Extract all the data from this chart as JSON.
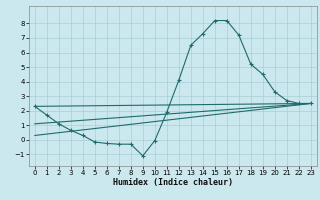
{
  "xlabel": "Humidex (Indice chaleur)",
  "xlim": [
    -0.5,
    23.5
  ],
  "ylim": [
    -1.8,
    9.2
  ],
  "yticks": [
    -1,
    0,
    1,
    2,
    3,
    4,
    5,
    6,
    7,
    8
  ],
  "xticks": [
    0,
    1,
    2,
    3,
    4,
    5,
    6,
    7,
    8,
    9,
    10,
    11,
    12,
    13,
    14,
    15,
    16,
    17,
    18,
    19,
    20,
    21,
    22,
    23
  ],
  "bg_color": "#cce8ef",
  "grid_color": "#aacdd8",
  "line_color": "#1e6b6b",
  "line1_x": [
    0,
    1,
    2,
    3,
    4,
    5,
    6,
    7,
    8,
    9,
    10,
    11,
    12,
    13,
    14,
    15,
    16,
    17,
    18,
    19,
    20,
    21,
    22,
    23
  ],
  "line1_y": [
    2.3,
    1.7,
    1.1,
    0.65,
    0.3,
    -0.15,
    -0.25,
    -0.3,
    -0.3,
    -1.1,
    -0.05,
    1.9,
    4.1,
    6.5,
    7.3,
    8.2,
    8.2,
    7.2,
    5.2,
    4.5,
    3.3,
    2.7,
    2.5,
    2.5
  ],
  "line2_x": [
    0,
    23
  ],
  "line2_y": [
    2.3,
    2.5
  ],
  "line3_x": [
    0,
    23
  ],
  "line3_y": [
    2.3,
    2.5
  ],
  "line4_x": [
    0,
    23
  ],
  "line4_y": [
    2.3,
    2.5
  ],
  "straight_lines": [
    {
      "x": [
        0,
        23
      ],
      "y": [
        2.3,
        2.5
      ]
    },
    {
      "x": [
        0,
        23
      ],
      "y": [
        1.1,
        2.5
      ]
    },
    {
      "x": [
        0,
        23
      ],
      "y": [
        0.3,
        2.5
      ]
    }
  ]
}
